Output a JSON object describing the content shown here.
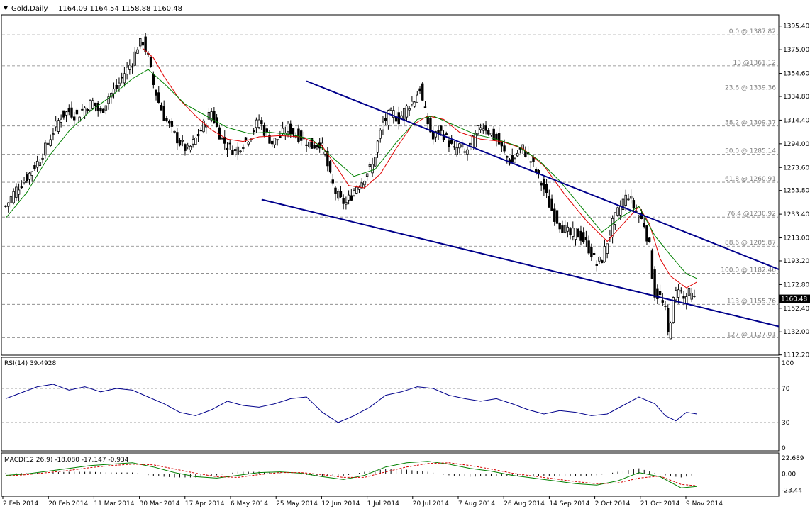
{
  "header": {
    "symbol": "Gold,Daily",
    "ohlc": "1164.09 1164.54 1158.88 1160.48"
  },
  "colors": {
    "candle": "#000000",
    "ma_fast": "#e00000",
    "ma_slow": "#008000",
    "trendline": "#00008b",
    "rsi": "#00008b",
    "macd_signal": "#d40000",
    "macd_main": "#008000",
    "grid": "#808080",
    "fib_label": "#7f7f7f"
  },
  "chart_data": [
    {
      "type": "candlestick",
      "panel": "price",
      "title": "Gold,Daily",
      "ylim": [
        1112,
        1405
      ],
      "y_ticks": [
        "1395.40",
        "1375.00",
        "1354.60",
        "1334.80",
        "1314.40",
        "1294.00",
        "1273.60",
        "1253.80",
        "1233.40",
        "1213.00",
        "1193.20",
        "1172.80",
        "1152.40",
        "1132.00",
        "1112.20"
      ],
      "x_ticks": [
        "2 Feb 2014",
        "20 Feb 2014",
        "11 Mar 2014",
        "30 Mar 2014",
        "17 Apr 2014",
        "6 May 2014",
        "25 May 2014",
        "12 Jun 2014",
        "1 Jul 2014",
        "20 Jul 2014",
        "7 Aug 2014",
        "26 Aug 2014",
        "14 Sep 2014",
        "2 Oct 2014",
        "21 Oct 2014",
        "9 Nov 2014"
      ],
      "current_price": "1160.48",
      "fib_levels": [
        {
          "label": "0.0 @ 1387.82",
          "value": 1387.82
        },
        {
          "label": "13 @1361.12",
          "value": 1361.12
        },
        {
          "label": "23.6 @ 1339.36",
          "value": 1339.36
        },
        {
          "label": "38.2 @ 1309.37",
          "value": 1309.37
        },
        {
          "label": "50.0 @ 1285.14",
          "value": 1285.14
        },
        {
          "label": "61.8 @ 1260.91",
          "value": 1260.91
        },
        {
          "label": "76.4 @1230.92",
          "value": 1230.92
        },
        {
          "label": "88.6 @ 1205.87",
          "value": 1205.87
        },
        {
          "label": "100.0 @ 1182.46",
          "value": 1182.46
        },
        {
          "label": "113 @ 1155.76",
          "value": 1155.76
        },
        {
          "label": "127 @ 1127.01",
          "value": 1127.01
        }
      ],
      "close_path": [
        [
          0,
          1240
        ],
        [
          4,
          1255
        ],
        [
          8,
          1265
        ],
        [
          12,
          1278
        ],
        [
          15,
          1290
        ],
        [
          18,
          1305
        ],
        [
          21,
          1318
        ],
        [
          24,
          1322
        ],
        [
          27,
          1318
        ],
        [
          30,
          1325
        ],
        [
          33,
          1330
        ],
        [
          36,
          1320
        ],
        [
          39,
          1335
        ],
        [
          42,
          1342
        ],
        [
          45,
          1355
        ],
        [
          48,
          1365
        ],
        [
          50,
          1378
        ],
        [
          52,
          1382
        ],
        [
          54,
          1368
        ],
        [
          56,
          1345
        ],
        [
          58,
          1330
        ],
        [
          60,
          1318
        ],
        [
          63,
          1305
        ],
        [
          66,
          1295
        ],
        [
          69,
          1288
        ],
        [
          72,
          1298
        ],
        [
          75,
          1310
        ],
        [
          78,
          1322
        ],
        [
          80,
          1308
        ],
        [
          82,
          1298
        ],
        [
          84,
          1292
        ],
        [
          87,
          1288
        ],
        [
          90,
          1295
        ],
        [
          93,
          1302
        ],
        [
          96,
          1315
        ],
        [
          98,
          1305
        ],
        [
          101,
          1295
        ],
        [
          104,
          1300
        ],
        [
          107,
          1308
        ],
        [
          110,
          1302
        ],
        [
          113,
          1298
        ],
        [
          116,
          1292
        ],
        [
          119,
          1295
        ],
        [
          121,
          1285
        ],
        [
          123,
          1265
        ],
        [
          125,
          1252
        ],
        [
          127,
          1245
        ],
        [
          129,
          1243
        ],
        [
          131,
          1250
        ],
        [
          133,
          1258
        ],
        [
          135,
          1262
        ],
        [
          137,
          1270
        ],
        [
          139,
          1275
        ],
        [
          141,
          1295
        ],
        [
          143,
          1312
        ],
        [
          145,
          1318
        ],
        [
          147,
          1320
        ],
        [
          149,
          1315
        ],
        [
          151,
          1322
        ],
        [
          153,
          1328
        ],
        [
          155,
          1332
        ],
        [
          157,
          1342
        ],
        [
          158,
          1330
        ],
        [
          160,
          1312
        ],
        [
          162,
          1298
        ],
        [
          164,
          1305
        ],
        [
          166,
          1302
        ],
        [
          168,
          1295
        ],
        [
          170,
          1288
        ],
        [
          172,
          1292
        ],
        [
          174,
          1286
        ],
        [
          176,
          1292
        ],
        [
          178,
          1300
        ],
        [
          180,
          1310
        ],
        [
          182,
          1308
        ],
        [
          184,
          1302
        ],
        [
          186,
          1298
        ],
        [
          188,
          1290
        ],
        [
          190,
          1282
        ],
        [
          192,
          1278
        ],
        [
          194,
          1286
        ],
        [
          196,
          1290
        ],
        [
          198,
          1283
        ],
        [
          200,
          1275
        ],
        [
          202,
          1265
        ],
        [
          204,
          1255
        ],
        [
          206,
          1242
        ],
        [
          208,
          1232
        ],
        [
          210,
          1225
        ],
        [
          212,
          1220
        ],
        [
          214,
          1215
        ],
        [
          216,
          1218
        ],
        [
          218,
          1214
        ],
        [
          220,
          1208
        ],
        [
          222,
          1200
        ],
        [
          224,
          1190
        ],
        [
          226,
          1195
        ],
        [
          228,
          1210
        ],
        [
          230,
          1225
        ],
        [
          232,
          1235
        ],
        [
          234,
          1245
        ],
        [
          236,
          1250
        ],
        [
          238,
          1240
        ],
        [
          240,
          1232
        ],
        [
          242,
          1225
        ],
        [
          244,
          1205
        ],
        [
          245,
          1182
        ],
        [
          246,
          1165
        ],
        [
          248,
          1162
        ],
        [
          250,
          1150
        ],
        [
          251,
          1130
        ],
        [
          253,
          1158
        ],
        [
          255,
          1172
        ],
        [
          257,
          1160
        ],
        [
          259,
          1165
        ],
        [
          261,
          1160
        ]
      ],
      "series": [
        {
          "name": "",
          "kind": "ma_fast",
          "values": [
            [
              52,
              1376
            ],
            [
              56,
              1368
            ],
            [
              60,
              1352
            ],
            [
              66,
              1332
            ],
            [
              72,
              1318
            ],
            [
              78,
              1306
            ],
            [
              84,
              1298
            ],
            [
              90,
              1296
            ],
            [
              96,
              1300
            ],
            [
              104,
              1301
            ],
            [
              112,
              1300
            ],
            [
              120,
              1292
            ],
            [
              126,
              1272
            ],
            [
              130,
              1258
            ],
            [
              136,
              1256
            ],
            [
              142,
              1268
            ],
            [
              148,
              1290
            ],
            [
              154,
              1310
            ],
            [
              160,
              1318
            ],
            [
              166,
              1315
            ],
            [
              172,
              1304
            ],
            [
              180,
              1298
            ],
            [
              188,
              1296
            ],
            [
              196,
              1290
            ],
            [
              204,
              1275
            ],
            [
              212,
              1250
            ],
            [
              220,
              1228
            ],
            [
              228,
              1210
            ],
            [
              236,
              1230
            ],
            [
              240,
              1240
            ],
            [
              244,
              1225
            ],
            [
              248,
              1195
            ],
            [
              252,
              1180
            ],
            [
              258,
              1170
            ],
            [
              262,
              1175
            ]
          ]
        },
        {
          "name": "",
          "kind": "ma_slow",
          "values": [
            [
              0,
              1230
            ],
            [
              8,
              1252
            ],
            [
              16,
              1282
            ],
            [
              24,
              1305
            ],
            [
              32,
              1322
            ],
            [
              40,
              1335
            ],
            [
              48,
              1350
            ],
            [
              54,
              1358
            ],
            [
              60,
              1346
            ],
            [
              68,
              1328
            ],
            [
              76,
              1318
            ],
            [
              84,
              1308
            ],
            [
              92,
              1303
            ],
            [
              100,
              1304
            ],
            [
              108,
              1302
            ],
            [
              116,
              1298
            ],
            [
              124,
              1282
            ],
            [
              132,
              1266
            ],
            [
              140,
              1272
            ],
            [
              148,
              1295
            ],
            [
              156,
              1315
            ],
            [
              162,
              1318
            ],
            [
              170,
              1310
            ],
            [
              178,
              1302
            ],
            [
              186,
              1298
            ],
            [
              194,
              1292
            ],
            [
              202,
              1280
            ],
            [
              210,
              1262
            ],
            [
              218,
              1240
            ],
            [
              226,
              1218
            ],
            [
              234,
              1232
            ],
            [
              240,
              1240
            ],
            [
              246,
              1215
            ],
            [
              252,
              1198
            ],
            [
              258,
              1182
            ],
            [
              262,
              1178
            ]
          ]
        }
      ],
      "trendlines": [
        {
          "from": [
            114,
            1348
          ],
          "to": [
            262,
            1214
          ]
        },
        {
          "from": [
            97,
            1246
          ],
          "to": [
            262,
            1154
          ]
        }
      ]
    },
    {
      "type": "line",
      "panel": "rsi",
      "title": "RSI(14) 39.4928",
      "ylim": [
        0,
        100
      ],
      "y_ticks": [
        "100",
        "70",
        "30",
        "0"
      ],
      "levels": [
        70,
        30
      ],
      "x": [
        0,
        6,
        12,
        18,
        24,
        30,
        36,
        42,
        48,
        54,
        60,
        66,
        72,
        78,
        84,
        90,
        96,
        102,
        108,
        114,
        120,
        126,
        132,
        138,
        144,
        150,
        156,
        162,
        168,
        174,
        180,
        186,
        192,
        198,
        204,
        210,
        216,
        222,
        228,
        234,
        240,
        246,
        250,
        254,
        258,
        262
      ],
      "values": [
        58,
        65,
        72,
        75,
        68,
        72,
        66,
        70,
        68,
        60,
        52,
        42,
        38,
        45,
        55,
        50,
        48,
        52,
        58,
        60,
        42,
        30,
        38,
        48,
        62,
        66,
        72,
        70,
        62,
        58,
        55,
        58,
        52,
        45,
        40,
        44,
        42,
        38,
        40,
        50,
        60,
        52,
        38,
        32,
        42,
        40
      ]
    },
    {
      "type": "bar+line",
      "panel": "macd",
      "title": "MACD(12,26,9) -18.080 -17.147 -0.934",
      "ylim": [
        -30,
        28
      ],
      "y_ticks": [
        "22.689",
        "0.00",
        "-23.44"
      ],
      "x": [
        0,
        8,
        16,
        24,
        32,
        40,
        48,
        56,
        64,
        72,
        80,
        88,
        96,
        104,
        112,
        120,
        128,
        136,
        144,
        152,
        160,
        168,
        176,
        184,
        192,
        200,
        208,
        216,
        224,
        232,
        240,
        248,
        256,
        262
      ],
      "main": [
        -2,
        0,
        4,
        8,
        12,
        14,
        16,
        10,
        2,
        -4,
        -6,
        -2,
        2,
        3,
        1,
        -4,
        -8,
        -2,
        10,
        16,
        18,
        14,
        8,
        4,
        -2,
        -6,
        -10,
        -14,
        -16,
        -10,
        2,
        -4,
        -20,
        -18
      ],
      "signal": [
        -3,
        -1,
        2,
        5,
        9,
        12,
        14,
        13,
        7,
        1,
        -4,
        -5,
        -1,
        2,
        2,
        -1,
        -5,
        -5,
        3,
        10,
        15,
        16,
        12,
        7,
        1,
        -3,
        -7,
        -11,
        -14,
        -13,
        -6,
        -3,
        -15,
        -17
      ],
      "hist": [
        1,
        1,
        2,
        3,
        3,
        2,
        2,
        -3,
        -5,
        -5,
        -2,
        3,
        3,
        1,
        -1,
        -3,
        -3,
        3,
        7,
        6,
        3,
        -2,
        -4,
        -3,
        -3,
        -3,
        -3,
        -3,
        -2,
        3,
        8,
        -1,
        -5,
        -1
      ]
    }
  ]
}
